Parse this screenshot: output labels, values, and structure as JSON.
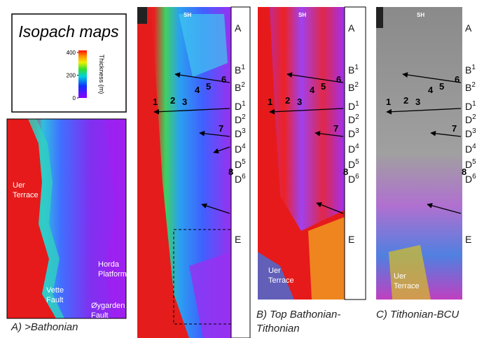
{
  "legend": {
    "title": "Isopach maps",
    "colorbar_label": "Thickness (m)",
    "ticks": [
      400,
      200,
      0
    ]
  },
  "side_labels": [
    {
      "letter": "A"
    },
    {
      "letter": "B",
      "sup": "1"
    },
    {
      "letter": "B",
      "sup": "2"
    },
    {
      "letter": "D",
      "sup": "1"
    },
    {
      "letter": "D",
      "sup": "2"
    },
    {
      "letter": "D",
      "sup": "3"
    },
    {
      "letter": "D",
      "sup": "4"
    },
    {
      "letter": "D",
      "sup": "5"
    },
    {
      "letter": "D",
      "sup": "6"
    },
    {
      "letter": "E"
    }
  ],
  "map_numbers": [
    "1",
    "2",
    "3",
    "4",
    "5",
    "6",
    "7",
    "8"
  ],
  "map_tag": "SH",
  "panels": [
    {
      "caption": "A) >Bathonian",
      "places": [
        {
          "lines": [
            "Uer",
            "Terrace"
          ]
        },
        {
          "lines": [
            "Horda",
            "Platform"
          ]
        },
        {
          "lines": [
            "Vette",
            "Fault"
          ]
        },
        {
          "lines": [
            "Øygarden",
            "Fault"
          ]
        }
      ]
    },
    {
      "caption_lines": [
        "B) Top Bathonian-",
        "Tithonian"
      ],
      "places": [
        {
          "lines": [
            "Uer",
            "Terrace"
          ]
        }
      ]
    },
    {
      "caption": "C) Tithonian-BCU",
      "places": [
        {
          "lines": [
            "Uer",
            "Terrace"
          ]
        }
      ]
    }
  ]
}
